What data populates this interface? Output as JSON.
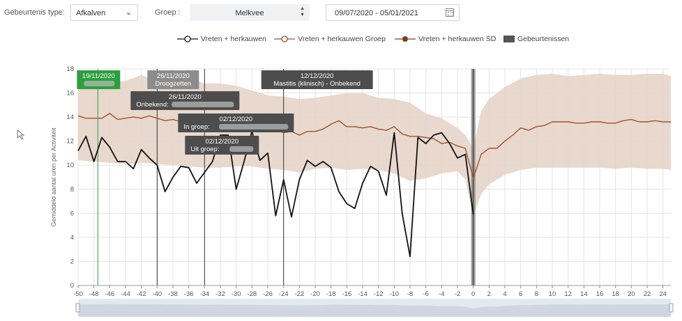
{
  "filters": {
    "event_type_label": "Gebeurtenis type:",
    "event_type_value": "Afkalven",
    "group_label": "Groep :",
    "group_value": "Melkvee",
    "date_range": "09/07/2020 - 05/01/2021"
  },
  "icons": {
    "dropdown": "chevron-down-icon",
    "spinner": "spinner-arrows-icon",
    "calendar": "calendar-icon",
    "cursor": "mouse-pointer-icon"
  },
  "legend": [
    {
      "label": "Vreten + herkauwen",
      "color": "#111111",
      "marker": "open-circle"
    },
    {
      "label": "Vreten + herkauwen Groep",
      "color": "#a0522d",
      "marker": "open-circle"
    },
    {
      "label": "Vreten + herkauwen SD",
      "color": "#7a3f1f",
      "marker": "filled-circle"
    },
    {
      "label": "Gebeurtenissen",
      "color": "#555555",
      "marker": "box"
    }
  ],
  "chart_data": {
    "type": "line",
    "ylabel": "Gemiddeld aantal uren per Activiteit",
    "xlim": [
      -50,
      25
    ],
    "ylim": [
      0,
      18
    ],
    "x_ticks": [
      -50,
      -48,
      -46,
      -44,
      -42,
      -40,
      -38,
      -36,
      -34,
      -32,
      -30,
      -28,
      -26,
      -24,
      -22,
      -20,
      -18,
      -16,
      -14,
      -12,
      -10,
      -8,
      -6,
      -4,
      -2,
      0,
      2,
      4,
      6,
      8,
      10,
      12,
      14,
      16,
      18,
      20,
      22,
      24
    ],
    "y_ticks": [
      0,
      2,
      4,
      6,
      8,
      10,
      12,
      14,
      16,
      18
    ],
    "grid": true,
    "legend_position": "top",
    "series": [
      {
        "name": "Vreten + herkauwen",
        "color": "#111111",
        "x": [
          -50,
          -49,
          -48,
          -47,
          -46,
          -45,
          -44,
          -43,
          -42,
          -41,
          -40,
          -39,
          -38,
          -37,
          -36,
          -35,
          -34,
          -33,
          -32,
          -31,
          -30,
          -29,
          -28,
          -27,
          -26,
          -25,
          -24,
          -23,
          -22,
          -21,
          -20,
          -19,
          -18,
          -17,
          -16,
          -15,
          -14,
          -13,
          -12,
          -11,
          -10,
          -9,
          -8,
          -7,
          -6,
          -5,
          -4,
          -3,
          -2,
          -1,
          0
        ],
        "y": [
          11.2,
          12.4,
          10.3,
          12.3,
          11.5,
          10.3,
          10.3,
          9.7,
          11.3,
          10.6,
          10.0,
          7.8,
          9.0,
          9.9,
          9.8,
          8.5,
          9.4,
          10.3,
          12.5,
          12.5,
          8.0,
          10.3,
          12.8,
          10.4,
          11.0,
          5.8,
          8.8,
          5.7,
          8.8,
          10.4,
          9.9,
          10.3,
          9.8,
          7.8,
          6.8,
          6.4,
          8.5,
          9.9,
          9.5,
          7.5,
          12.7,
          6.0,
          2.4,
          12.3,
          11.8,
          12.5,
          12.7,
          11.8,
          10.6,
          10.9,
          5.9
        ]
      },
      {
        "name": "Vreten + herkauwen Groep",
        "color": "#a0522d",
        "x": [
          -50,
          -49,
          -48,
          -47,
          -46,
          -45,
          -44,
          -43,
          -42,
          -41,
          -40,
          -39,
          -38,
          -37,
          -36,
          -35,
          -34,
          -33,
          -32,
          -31,
          -30,
          -29,
          -28,
          -27,
          -26,
          -25,
          -24,
          -23,
          -22,
          -21,
          -20,
          -19,
          -18,
          -17,
          -16,
          -15,
          -14,
          -13,
          -12,
          -11,
          -10,
          -9,
          -8,
          -7,
          -6,
          -5,
          -4,
          -3,
          -2,
          -1,
          0,
          1,
          2,
          3,
          4,
          5,
          6,
          7,
          8,
          9,
          10,
          11,
          12,
          13,
          14,
          15,
          16,
          17,
          18,
          19,
          20,
          21,
          22,
          23,
          24,
          25
        ],
        "y": [
          14.1,
          13.9,
          13.9,
          13.9,
          14.3,
          13.8,
          13.9,
          14.0,
          13.9,
          14.1,
          13.9,
          13.7,
          13.8,
          13.6,
          13.5,
          13.4,
          13.2,
          13.4,
          13.5,
          13.3,
          13.3,
          13.2,
          13.4,
          13.0,
          13.1,
          12.9,
          12.7,
          12.8,
          12.5,
          12.8,
          12.8,
          13.0,
          13.4,
          13.7,
          13.2,
          13.2,
          13.1,
          13.2,
          13.0,
          12.9,
          13.2,
          12.6,
          12.4,
          12.4,
          12.3,
          12.2,
          11.8,
          11.9,
          11.6,
          11.4,
          8.9,
          10.9,
          11.4,
          11.4,
          12.0,
          12.5,
          13.1,
          12.9,
          13.2,
          13.3,
          13.6,
          13.6,
          13.6,
          13.5,
          13.5,
          13.6,
          13.6,
          13.5,
          13.5,
          13.7,
          13.8,
          13.6,
          13.6,
          13.7,
          13.6,
          13.6
        ]
      },
      {
        "name": "Vreten + herkauwen SD",
        "color": "#e6d4c8",
        "x": [
          -50,
          -48,
          -46,
          -44,
          -42,
          -40,
          -38,
          -36,
          -34,
          -32,
          -30,
          -28,
          -26,
          -24,
          -22,
          -20,
          -18,
          -16,
          -14,
          -12,
          -10,
          -8,
          -6,
          -4,
          -2,
          -1,
          0,
          1,
          2,
          4,
          6,
          8,
          10,
          12,
          14,
          16,
          18,
          20,
          22,
          24,
          25
        ],
        "upper": [
          17.3,
          17.3,
          16.9,
          17.0,
          17.5,
          17.0,
          16.8,
          17.2,
          16.8,
          16.8,
          16.6,
          16.2,
          15.8,
          15.7,
          15.5,
          15.6,
          15.8,
          16.0,
          16.0,
          15.6,
          15.5,
          15.2,
          14.3,
          13.9,
          13.1,
          12.5,
          11.4,
          14.5,
          15.5,
          16.5,
          17.2,
          17.5,
          17.6,
          17.4,
          17.5,
          17.6,
          17.5,
          17.5,
          17.6,
          17.6,
          17.4
        ],
        "lower": [
          10.4,
          10.3,
          10.2,
          10.1,
          10.2,
          10.1,
          10.0,
          9.9,
          9.8,
          9.8,
          9.9,
          9.9,
          9.7,
          9.6,
          9.4,
          9.7,
          9.8,
          9.6,
          9.7,
          9.6,
          9.3,
          8.7,
          8.9,
          9.3,
          9.5,
          8.8,
          5.7,
          7.6,
          8.4,
          9.2,
          9.6,
          9.8,
          9.8,
          9.8,
          9.8,
          9.8,
          9.7,
          9.8,
          9.7,
          9.7,
          9.6
        ]
      }
    ],
    "events": [
      {
        "x": -47.5,
        "date": "19/11/2020",
        "label": "",
        "style": "green",
        "row": 0,
        "blurred": true
      },
      {
        "x": -40,
        "date": "26/11/2020",
        "label": "Droogzetten",
        "style": "lightgray",
        "row": 0,
        "blurred": false
      },
      {
        "x": -40,
        "date": "26/11/2020",
        "label": "Onbekend:",
        "style": "dark",
        "row": 1,
        "blurred": true
      },
      {
        "x": -34,
        "date": "02/12/2020",
        "label": "In groep:",
        "style": "dark",
        "row": 2,
        "blurred": true
      },
      {
        "x": -34,
        "date": "02/12/2020",
        "label": "Uit groep:",
        "style": "dark",
        "row": 3,
        "blurred": true
      },
      {
        "x": -24,
        "date": "12/12/2020",
        "label": "Mastitis (klinisch) - Onbekend",
        "style": "dark",
        "row": 0,
        "blurred": false
      }
    ],
    "event_band_x": 0
  }
}
